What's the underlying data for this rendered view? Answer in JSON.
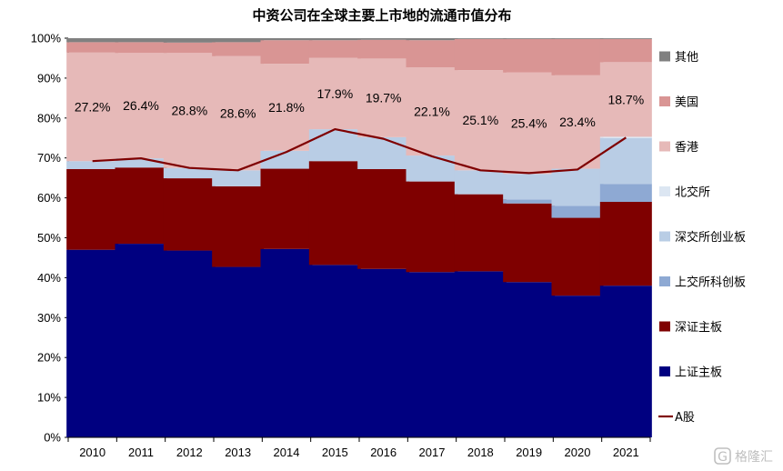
{
  "chart_data": {
    "type": "bar",
    "stacked": true,
    "title": "中资公司在全球主要上市地的流通市值分布",
    "categories": [
      "2010",
      "2011",
      "2012",
      "2013",
      "2014",
      "2015",
      "2016",
      "2017",
      "2018",
      "2019",
      "2020",
      "2021"
    ],
    "ylim": [
      0,
      100
    ],
    "yticks": [
      "0%",
      "10%",
      "20%",
      "30%",
      "40%",
      "50%",
      "60%",
      "70%",
      "80%",
      "90%",
      "100%"
    ],
    "series": [
      {
        "name": "上证主板",
        "color": "#000080",
        "values": [
          47.0,
          48.5,
          46.8,
          42.7,
          47.2,
          43.2,
          42.2,
          41.4,
          41.6,
          38.9,
          35.5,
          38.0
        ]
      },
      {
        "name": "深证主板",
        "color": "#7f0000",
        "values": [
          20.2,
          19.1,
          18.1,
          20.2,
          20.1,
          26.0,
          25.0,
          22.7,
          19.3,
          19.7,
          19.5,
          21.0
        ]
      },
      {
        "name": "上交所科创板",
        "color": "#8ea9d3",
        "values": [
          0,
          0,
          0,
          0,
          0,
          0,
          0,
          0,
          0,
          1.0,
          3.0,
          4.5
        ]
      },
      {
        "name": "深交所创业板",
        "color": "#b9cde5",
        "values": [
          2.0,
          2.3,
          2.6,
          4.0,
          4.5,
          8.0,
          8.0,
          6.5,
          6.0,
          6.4,
          9.3,
          11.5
        ]
      },
      {
        "name": "北交所",
        "color": "#dce6f2",
        "values": [
          0,
          0,
          0,
          0,
          0,
          0,
          0,
          0,
          0,
          0,
          0,
          0.3
        ]
      },
      {
        "name": "香港",
        "color": "#e6b9b8",
        "values": [
          27.2,
          26.4,
          28.8,
          28.6,
          21.8,
          17.9,
          19.7,
          22.1,
          25.1,
          25.4,
          23.4,
          18.7
        ]
      },
      {
        "name": "美国",
        "color": "#d99594",
        "values": [
          2.6,
          2.7,
          2.6,
          3.5,
          5.9,
          4.4,
          4.7,
          6.8,
          7.8,
          8.4,
          9.1,
          5.8
        ]
      },
      {
        "name": "其他",
        "color": "#808080",
        "values": [
          1.0,
          1.0,
          1.1,
          1.0,
          0.5,
          0.5,
          0.4,
          0.5,
          0.2,
          0.2,
          0.2,
          0.2
        ]
      }
    ],
    "line": {
      "name": "A股",
      "color": "#7f0000",
      "values": [
        69.2,
        69.9,
        67.5,
        66.9,
        71.5,
        77.2,
        74.8,
        70.4,
        66.9,
        66.2,
        67.1,
        75.1
      ]
    },
    "data_labels": [
      "27.2%",
      "26.4%",
      "28.8%",
      "28.6%",
      "21.8%",
      "17.9%",
      "19.7%",
      "22.1%",
      "25.1%",
      "25.4%",
      "23.4%",
      "18.7%"
    ],
    "legend": {
      "placement": "right",
      "items": [
        {
          "label": "其他",
          "kind": "box",
          "color": "#808080"
        },
        {
          "label": "美国",
          "kind": "box",
          "color": "#d99594"
        },
        {
          "label": "香港",
          "kind": "box",
          "color": "#e6b9b8"
        },
        {
          "label": "北交所",
          "kind": "box",
          "color": "#dce6f2"
        },
        {
          "label": "深交所创业板",
          "kind": "box",
          "color": "#b9cde5"
        },
        {
          "label": "上交所科创板",
          "kind": "box",
          "color": "#8ea9d3"
        },
        {
          "label": "深证主板",
          "kind": "box",
          "color": "#7f0000"
        },
        {
          "label": "上证主板",
          "kind": "box",
          "color": "#000080"
        },
        {
          "label": "A股",
          "kind": "line",
          "color": "#7f0000"
        }
      ]
    },
    "grid": false
  },
  "watermark": {
    "symbol": "G",
    "text": "格隆汇"
  }
}
